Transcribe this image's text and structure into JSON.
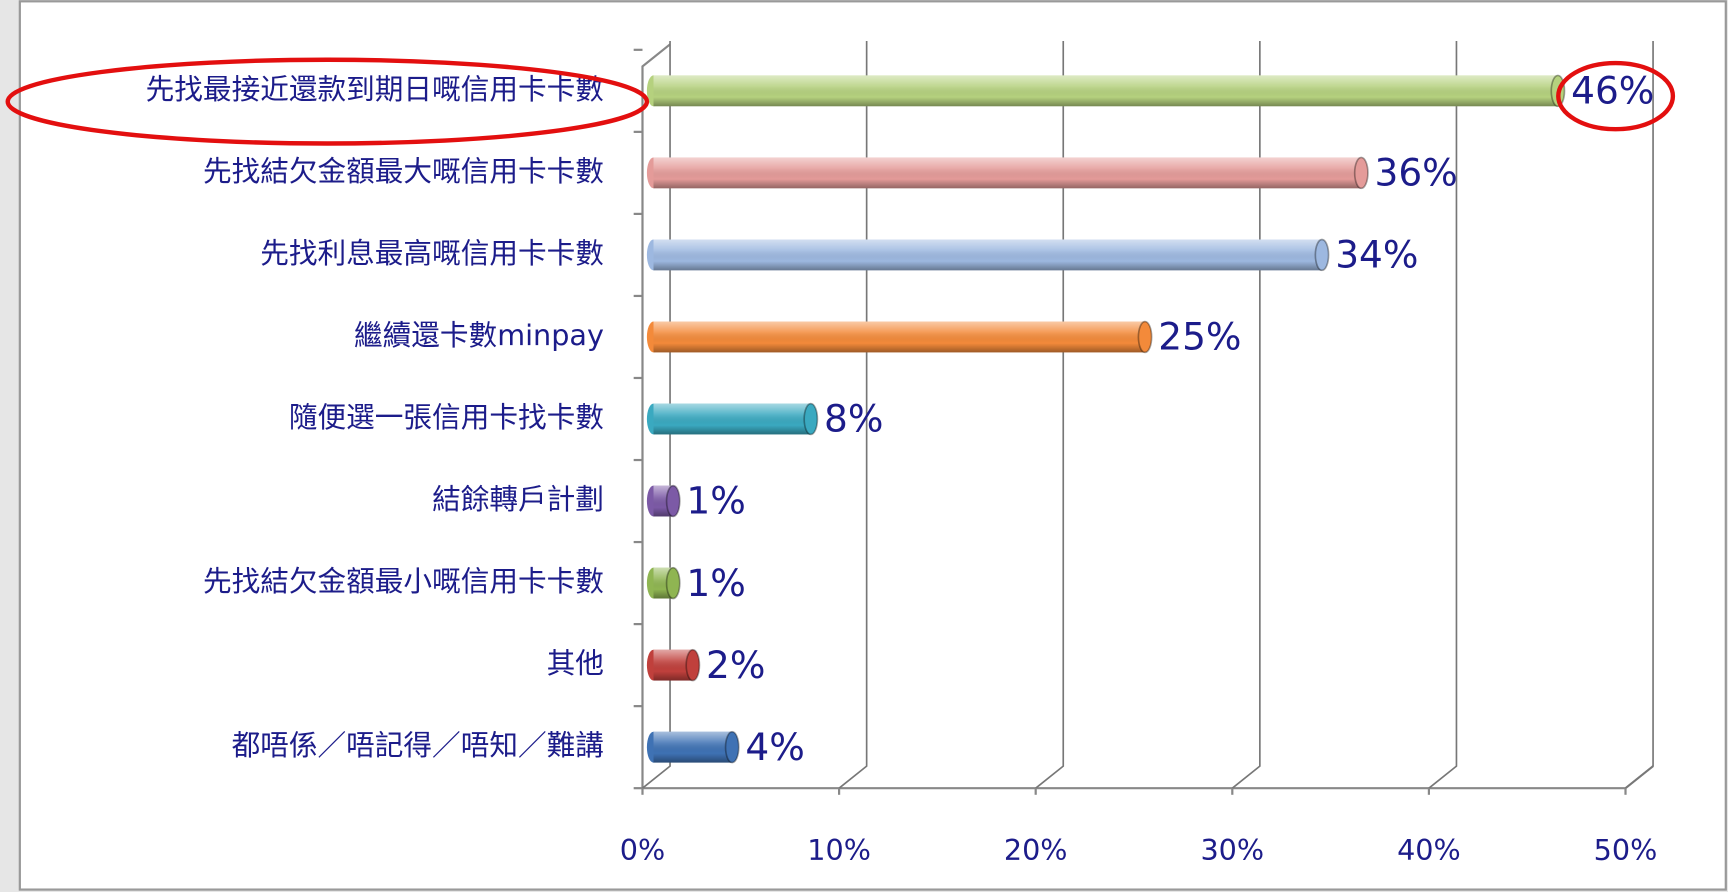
{
  "chart_data": {
    "type": "bar",
    "orientation": "horizontal",
    "categories": [
      "先找最接近還款到期日嘅信用卡卡數",
      "先找結欠金額最大嘅信用卡卡數",
      "先找利息最高嘅信用卡卡數",
      "繼續還卡數minpay",
      "隨便選一張信用卡找卡數",
      "結餘轉戶計劃",
      "先找結欠金額最小嘅信用卡卡數",
      "其他",
      "都唔係／唔記得／唔知／難講"
    ],
    "values": [
      46,
      36,
      34,
      25,
      8,
      1,
      1,
      2,
      4
    ],
    "value_labels": [
      "46%",
      "36%",
      "34%",
      "25%",
      "8%",
      "1%",
      "1%",
      "2%",
      "4%"
    ],
    "colors": [
      "#b5d17e",
      "#e49b99",
      "#9db8e0",
      "#f38a3a",
      "#3aa9c0",
      "#7c5aa6",
      "#8fb552",
      "#c0403c",
      "#3f72b4"
    ],
    "xlim": [
      0,
      50
    ],
    "xticks": [
      {
        "value": 0,
        "label": "0%"
      },
      {
        "value": 10,
        "label": "10%"
      },
      {
        "value": 20,
        "label": "20%"
      },
      {
        "value": 30,
        "label": "30%"
      },
      {
        "value": 40,
        "label": "40%"
      },
      {
        "value": 50,
        "label": "50%"
      }
    ],
    "grid": true
  }
}
